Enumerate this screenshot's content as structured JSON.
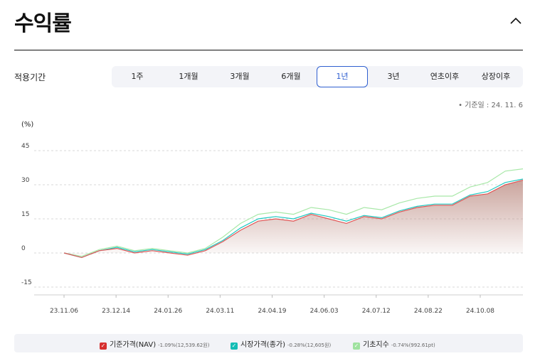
{
  "header": {
    "title": "수익률"
  },
  "period": {
    "label": "적용기간",
    "tabs": [
      {
        "label": "1주"
      },
      {
        "label": "1개월"
      },
      {
        "label": "3개월"
      },
      {
        "label": "6개월"
      },
      {
        "label": "1년",
        "active": true
      },
      {
        "label": "3년"
      },
      {
        "label": "연초이후"
      },
      {
        "label": "상장이후"
      }
    ]
  },
  "base_date": "기준일 : 24. 11. 6",
  "colors": {
    "nav": "#e05555",
    "market": "#20c8c0",
    "index": "#a8e8a8",
    "accent": "#2f5fd0"
  },
  "chart_data": {
    "type": "line",
    "ylabel": "(%)",
    "ylim": [
      -15,
      45
    ],
    "yticks": [
      45,
      30,
      15,
      0,
      -15
    ],
    "x_tick_labels": [
      "23.11.06",
      "23.12.14",
      "24.01.26",
      "24.03.11",
      "24.04.19",
      "24.06.03",
      "24.07.12",
      "24.08.22",
      "24.10.08"
    ],
    "grid": true,
    "legend_position": "bottom",
    "x": [
      "23.11.06",
      "23.11.20",
      "23.12.04",
      "23.12.14",
      "23.12.28",
      "24.01.12",
      "24.01.26",
      "24.02.09",
      "24.02.26",
      "24.03.11",
      "24.03.25",
      "24.04.08",
      "24.04.19",
      "24.05.03",
      "24.05.20",
      "24.06.03",
      "24.06.17",
      "24.07.01",
      "24.07.12",
      "24.07.26",
      "24.08.09",
      "24.08.22",
      "24.09.05",
      "24.09.23",
      "24.10.08",
      "24.10.22",
      "24.11.06"
    ],
    "series": [
      {
        "name": "기준가격(NAV)",
        "legend_detail": "-1.09%(12,539.62원)",
        "values": [
          0,
          -2,
          1,
          2,
          0,
          1,
          0,
          -1,
          1,
          5,
          10,
          14,
          15,
          14,
          17,
          15,
          13,
          16,
          15,
          18,
          20,
          21,
          21,
          25,
          26,
          30,
          32
        ]
      },
      {
        "name": "시장가격(종가)",
        "legend_detail": "-0.28%(12,605원)",
        "values": [
          0,
          -2,
          1,
          2.5,
          0.5,
          1.5,
          0.5,
          -0.5,
          1.5,
          5.5,
          11,
          15,
          16,
          15,
          17.5,
          16,
          14,
          16.5,
          15.5,
          18.5,
          20.5,
          21.5,
          21.5,
          25.5,
          27,
          31,
          32.5
        ]
      },
      {
        "name": "기초지수",
        "legend_detail": "-0.74%(992.61pt)",
        "values": [
          0,
          -1.5,
          1.5,
          3,
          1,
          2,
          1,
          0,
          2,
          7,
          13,
          17,
          18,
          17,
          20,
          19,
          17,
          20,
          19,
          22,
          24,
          25,
          25,
          29,
          31,
          36,
          37
        ]
      }
    ]
  }
}
